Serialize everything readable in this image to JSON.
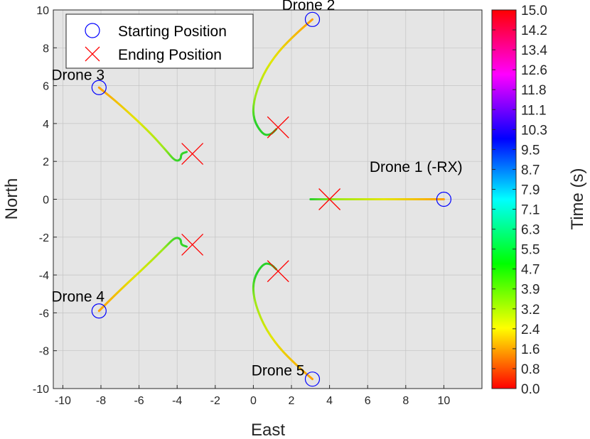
{
  "chart_data": {
    "type": "scatter",
    "xlabel": "East",
    "ylabel": "North",
    "xlim": [
      -10.5,
      12
    ],
    "ylim": [
      -10,
      10
    ],
    "xticks": [
      "-10",
      "-8",
      "-6",
      "-4",
      "-2",
      "0",
      "2",
      "4",
      "6",
      "8",
      "10"
    ],
    "yticks": [
      "-10",
      "-8",
      "-6",
      "-4",
      "-2",
      "0",
      "2",
      "4",
      "6",
      "8",
      "10"
    ],
    "grid": true,
    "legend_position": "top-left",
    "legend": [
      {
        "label": "Starting Position",
        "marker": "circle",
        "color": "#0000ff"
      },
      {
        "label": "Ending Position",
        "marker": "x",
        "color": "#ff0000"
      }
    ],
    "colorbar": {
      "label": "Time (s)",
      "min": 0,
      "max": 15,
      "ticks": [
        "15.0",
        "14.2",
        "13.4",
        "12.6",
        "11.8",
        "11.1",
        "10.3",
        "9.5",
        "8.7",
        "7.9",
        "7.1",
        "6.3",
        "5.5",
        "4.7",
        "3.9",
        "3.2",
        "2.4",
        "1.6",
        "0.8",
        "0.0"
      ]
    },
    "drones": [
      {
        "name": "Drone 1 (-RX)",
        "start": [
          10,
          0
        ],
        "end": [
          4,
          0
        ],
        "path": [
          [
            10,
            0
          ],
          [
            8,
            0
          ],
          [
            6,
            0
          ],
          [
            4.5,
            0
          ],
          [
            3,
            0
          ]
        ],
        "label_pos": [
          6.1,
          1.45
        ]
      },
      {
        "name": "Drone 2",
        "start": [
          3.1,
          9.5
        ],
        "end": [
          1.3,
          3.8
        ],
        "path": [
          [
            3.1,
            9.5
          ],
          [
            2.3,
            8.8
          ],
          [
            1.3,
            7.8
          ],
          [
            0.5,
            6.6
          ],
          [
            0.0,
            5.2
          ],
          [
            0.0,
            4.2
          ],
          [
            0.5,
            3.4
          ],
          [
            0.9,
            3.4
          ],
          [
            1.2,
            3.7
          ]
        ],
        "label_pos": [
          1.5,
          10
        ]
      },
      {
        "name": "Drone 3",
        "start": [
          -8.1,
          5.9
        ],
        "end": [
          -3.2,
          2.4
        ],
        "path": [
          [
            -8.1,
            5.9
          ],
          [
            -7.0,
            5.0
          ],
          [
            -5.5,
            3.6
          ],
          [
            -4.6,
            2.6
          ],
          [
            -4.1,
            2.0
          ],
          [
            -3.8,
            2.1
          ],
          [
            -3.8,
            2.4
          ],
          [
            -3.5,
            2.5
          ]
        ],
        "label_pos": [
          -10.6,
          6.3
        ]
      },
      {
        "name": "Drone 4",
        "start": [
          -8.1,
          -5.9
        ],
        "end": [
          -3.2,
          -2.4
        ],
        "path": [
          [
            -8.1,
            -5.9
          ],
          [
            -7.0,
            -4.8
          ],
          [
            -5.5,
            -3.4
          ],
          [
            -4.6,
            -2.5
          ],
          [
            -4.1,
            -2.0
          ],
          [
            -3.8,
            -2.1
          ],
          [
            -3.8,
            -2.4
          ],
          [
            -3.5,
            -2.5
          ]
        ],
        "label_pos": [
          -10.6,
          -5.4
        ]
      },
      {
        "name": "Drone 5",
        "start": [
          3.1,
          -9.5
        ],
        "end": [
          1.3,
          -3.8
        ],
        "path": [
          [
            3.1,
            -9.5
          ],
          [
            2.3,
            -8.8
          ],
          [
            1.3,
            -7.8
          ],
          [
            0.5,
            -6.6
          ],
          [
            0.0,
            -5.2
          ],
          [
            0.0,
            -4.2
          ],
          [
            0.5,
            -3.4
          ],
          [
            0.9,
            -3.4
          ],
          [
            1.2,
            -3.7
          ]
        ],
        "label_pos": [
          -0.1,
          -9.3
        ]
      }
    ]
  }
}
